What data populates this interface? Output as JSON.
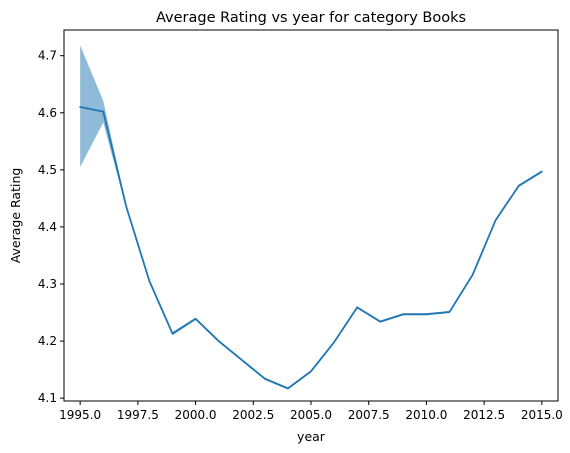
{
  "chart_data": {
    "type": "line",
    "title": "Average Rating vs year for category Books",
    "xlabel": "year",
    "ylabel": "Average Rating",
    "xlim": [
      1994.3,
      2015.7
    ],
    "ylim": [
      4.095,
      4.745
    ],
    "xticks": [
      1995.0,
      1997.5,
      2000.0,
      2002.5,
      2005.0,
      2007.5,
      2010.0,
      2012.5,
      2015.0
    ],
    "xtick_labels": [
      "1995.0",
      "1997.5",
      "2000.0",
      "2002.5",
      "2005.0",
      "2007.5",
      "2010.0",
      "2012.5",
      "2015.0"
    ],
    "yticks": [
      4.1,
      4.2,
      4.3,
      4.4,
      4.5,
      4.6,
      4.7
    ],
    "ytick_labels": [
      "4.1",
      "4.2",
      "4.3",
      "4.4",
      "4.5",
      "4.6",
      "4.7"
    ],
    "grid": false,
    "colors": {
      "line": "#1f77b4",
      "band": "#1f77b4"
    },
    "series": [
      {
        "x": [
          1995,
          1996,
          1997,
          1998,
          1999,
          2000,
          2001,
          2002,
          2003,
          2004,
          2005,
          2006,
          2007,
          2008,
          2009,
          2010,
          2011,
          2012,
          2013,
          2014,
          2015
        ],
        "values": [
          4.61,
          4.602,
          4.435,
          4.305,
          4.213,
          4.239,
          4.2,
          4.167,
          4.134,
          4.117,
          4.147,
          4.198,
          4.259,
          4.234,
          4.247,
          4.247,
          4.251,
          4.316,
          4.412,
          4.472,
          4.497
        ],
        "ci_lower": [
          4.505,
          4.583,
          4.432,
          4.303,
          4.21,
          4.237,
          4.198,
          4.165,
          4.132,
          4.115,
          4.145,
          4.196,
          4.257,
          4.232,
          4.245,
          4.245,
          4.249,
          4.314,
          4.41,
          4.47,
          4.495
        ],
        "ci_upper": [
          4.718,
          4.621,
          4.438,
          4.307,
          4.216,
          4.241,
          4.202,
          4.169,
          4.136,
          4.119,
          4.149,
          4.2,
          4.261,
          4.236,
          4.249,
          4.249,
          4.253,
          4.318,
          4.414,
          4.474,
          4.499
        ]
      }
    ]
  }
}
